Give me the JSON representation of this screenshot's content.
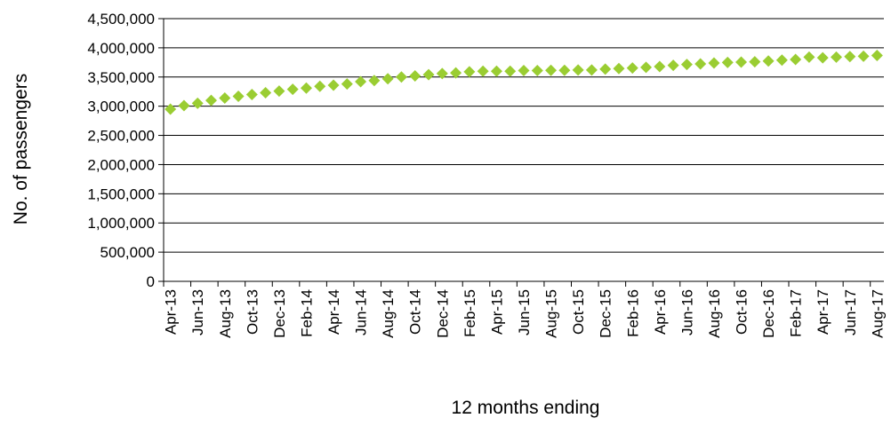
{
  "chart_data": {
    "type": "scatter",
    "title": "",
    "xlabel": "12 months ending",
    "ylabel": "No. of passengers",
    "ylim": [
      0,
      4500000
    ],
    "ytick_values": [
      0,
      500000,
      1000000,
      1500000,
      2000000,
      2500000,
      3000000,
      3500000,
      4000000,
      4500000
    ],
    "ytick_labels": [
      "0",
      "500,000",
      "1,000,000",
      "1,500,000",
      "2,000,000",
      "2,500,000",
      "3,000,000",
      "3,500,000",
      "4,000,000",
      "4,500,000"
    ],
    "grid": true,
    "legend": "none",
    "marker": "diamond",
    "marker_color": "#9acd32",
    "x": [
      "Apr-13",
      "May-13",
      "Jun-13",
      "Jul-13",
      "Aug-13",
      "Sep-13",
      "Oct-13",
      "Nov-13",
      "Dec-13",
      "Jan-14",
      "Feb-14",
      "Mar-14",
      "Apr-14",
      "May-14",
      "Jun-14",
      "Jul-14",
      "Aug-14",
      "Sep-14",
      "Oct-14",
      "Nov-14",
      "Dec-14",
      "Jan-15",
      "Feb-15",
      "Mar-15",
      "Apr-15",
      "May-15",
      "Jun-15",
      "Jul-15",
      "Aug-15",
      "Sep-15",
      "Oct-15",
      "Nov-15",
      "Dec-15",
      "Jan-16",
      "Feb-16",
      "Mar-16",
      "Apr-16",
      "May-16",
      "Jun-16",
      "Jul-16",
      "Aug-16",
      "Sep-16",
      "Oct-16",
      "Nov-16",
      "Dec-16",
      "Jan-17",
      "Feb-17",
      "Mar-17",
      "Apr-17",
      "May-17",
      "Jun-17",
      "Jul-17",
      "Aug-17"
    ],
    "tick_labels_shown": [
      "Apr-13",
      "Jun-13",
      "Aug-13",
      "Oct-13",
      "Dec-13",
      "Feb-14",
      "Apr-14",
      "Jun-14",
      "Aug-14",
      "Oct-14",
      "Dec-14",
      "Feb-15",
      "Apr-15",
      "Jun-15",
      "Aug-15",
      "Oct-15",
      "Dec-15",
      "Feb-16",
      "Apr-16",
      "Jun-16",
      "Aug-16",
      "Oct-16",
      "Dec-16",
      "Feb-17",
      "Apr-17",
      "Jun-17",
      "Aug-17"
    ],
    "series": [
      {
        "values": [
          2950000,
          3010000,
          3050000,
          3100000,
          3140000,
          3170000,
          3200000,
          3230000,
          3260000,
          3290000,
          3310000,
          3340000,
          3360000,
          3380000,
          3420000,
          3440000,
          3470000,
          3500000,
          3520000,
          3540000,
          3560000,
          3570000,
          3590000,
          3600000,
          3600000,
          3600000,
          3610000,
          3610000,
          3615000,
          3615000,
          3620000,
          3620000,
          3635000,
          3645000,
          3655000,
          3665000,
          3680000,
          3700000,
          3715000,
          3725000,
          3740000,
          3750000,
          3755000,
          3760000,
          3775000,
          3790000,
          3800000,
          3840000,
          3830000,
          3840000,
          3850000,
          3855000,
          3870000
        ]
      }
    ]
  }
}
